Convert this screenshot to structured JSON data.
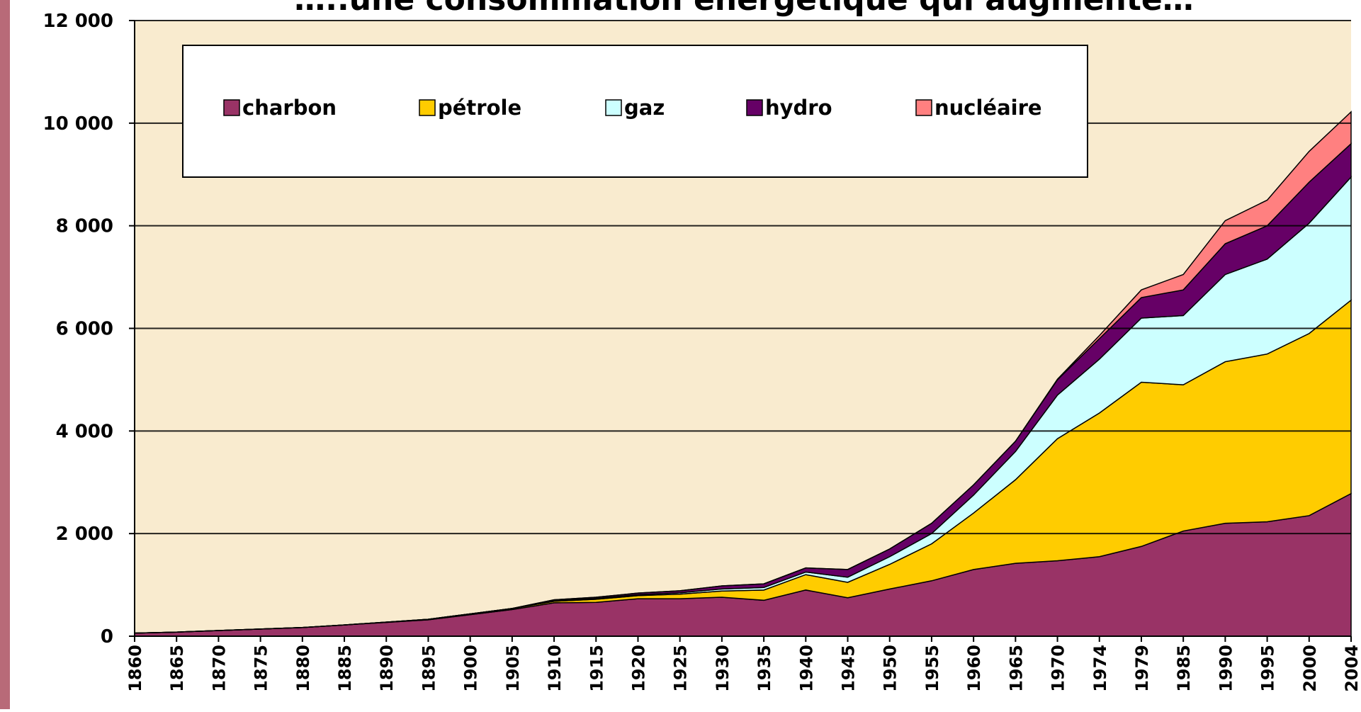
{
  "chart_data": {
    "type": "stacked_area",
    "title": "…..une consommation énergétique qui augmente…",
    "categories": [
      "1860",
      "1865",
      "1870",
      "1875",
      "1880",
      "1885",
      "1890",
      "1895",
      "1900",
      "1905",
      "1910",
      "1915",
      "1920",
      "1925",
      "1930",
      "1935",
      "1940",
      "1945",
      "1950",
      "1955",
      "1960",
      "1965",
      "1970",
      "1974",
      "1979",
      "1985",
      "1990",
      "1995",
      "2000",
      "2004"
    ],
    "series": [
      {
        "name": "charbon",
        "color": "#993366",
        "values": [
          60,
          80,
          110,
          140,
          170,
          220,
          270,
          320,
          420,
          520,
          650,
          660,
          730,
          730,
          760,
          700,
          900,
          750,
          920,
          1080,
          1300,
          1420,
          1470,
          1550,
          1750,
          2050,
          2200,
          2230,
          2350,
          2780
        ]
      },
      {
        "name": "pétrole",
        "color": "#ffcc00",
        "values": [
          0,
          0,
          0,
          0,
          0,
          0,
          5,
          10,
          15,
          20,
          30,
          60,
          60,
          90,
          120,
          200,
          300,
          300,
          480,
          720,
          1100,
          1630,
          2380,
          2800,
          3200,
          2850,
          3150,
          3270,
          3550,
          3770
        ]
      },
      {
        "name": "gaz",
        "color": "#ccffff",
        "values": [
          0,
          0,
          0,
          0,
          0,
          0,
          0,
          0,
          0,
          0,
          10,
          15,
          20,
          25,
          40,
          50,
          50,
          100,
          150,
          200,
          350,
          550,
          850,
          1050,
          1250,
          1350,
          1700,
          1850,
          2150,
          2400
        ]
      },
      {
        "name": "hydro",
        "color": "#660066",
        "values": [
          0,
          0,
          0,
          0,
          0,
          0,
          0,
          0,
          0,
          0,
          20,
          25,
          30,
          40,
          60,
          70,
          80,
          150,
          150,
          200,
          200,
          200,
          300,
          400,
          400,
          500,
          600,
          650,
          800,
          650
        ]
      },
      {
        "name": "nucléaire",
        "color": "#ff8080",
        "values": [
          0,
          0,
          0,
          0,
          0,
          0,
          0,
          0,
          0,
          0,
          0,
          0,
          0,
          0,
          0,
          0,
          0,
          0,
          0,
          0,
          0,
          0,
          10,
          60,
          150,
          300,
          450,
          500,
          600,
          620
        ]
      }
    ],
    "ylim": [
      0,
      12000
    ],
    "yticks": [
      0,
      {
        "value": 2000,
        "label": "2 000"
      },
      {
        "value": 4000,
        "label": "4 000"
      },
      {
        "value": 6000,
        "label": "6 000"
      },
      {
        "value": 8000,
        "label": "8 000"
      },
      {
        "value": 10000,
        "label": "10 000"
      },
      {
        "value": 12000,
        "label": "12 000"
      }
    ],
    "grid": true,
    "background": "#f9ebcf"
  }
}
